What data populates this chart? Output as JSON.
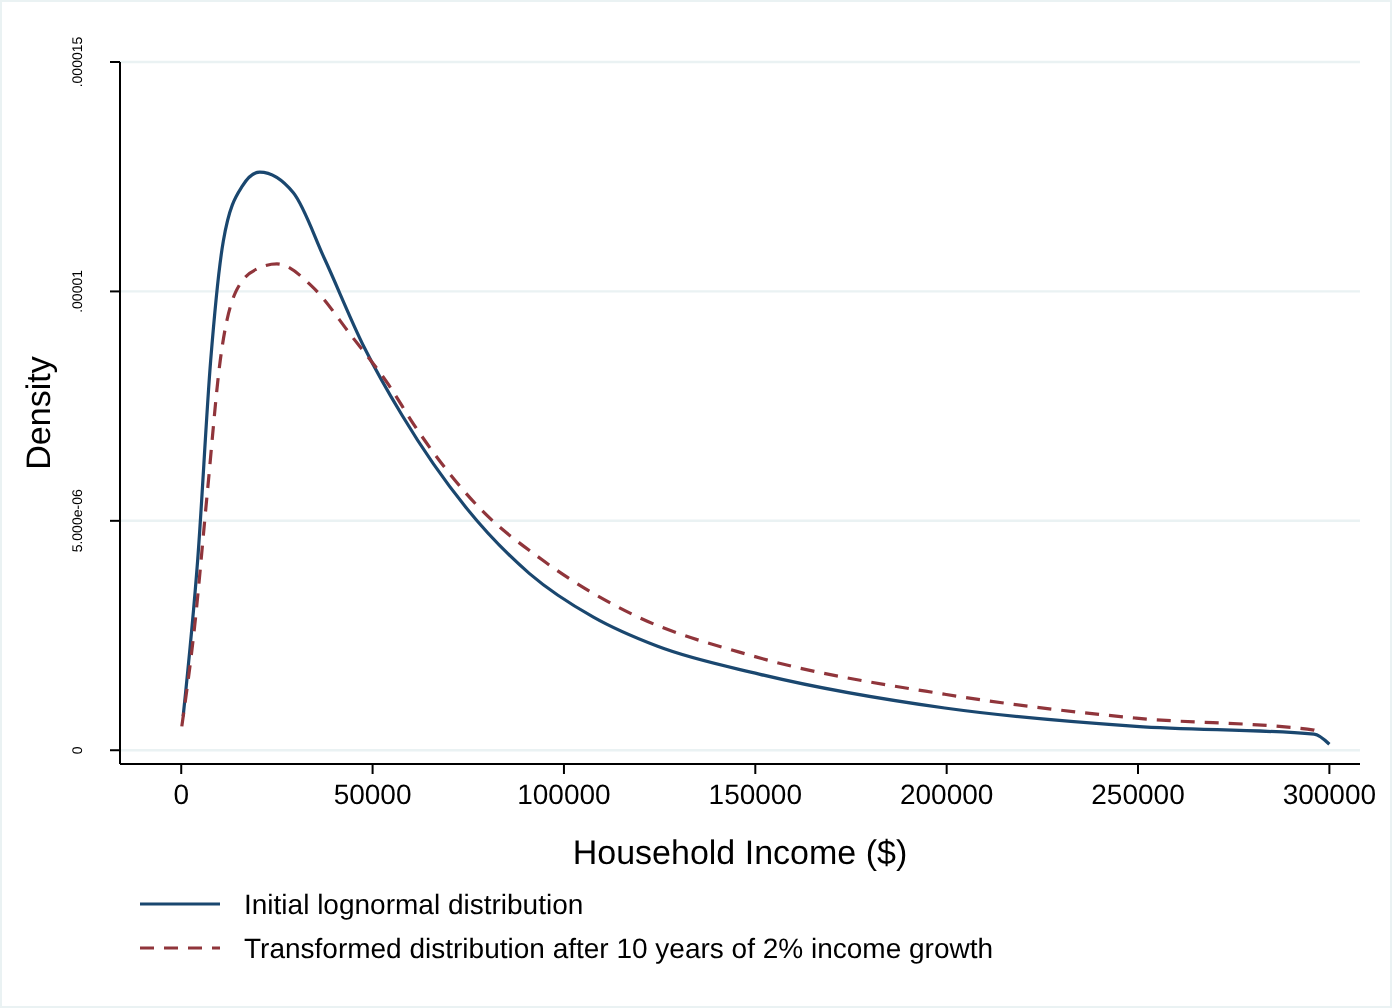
{
  "chart_data": {
    "type": "line",
    "xlabel": "Household Income ($)",
    "ylabel": "Density",
    "xlim": [
      -16000,
      308000
    ],
    "xticks": [
      0,
      50000,
      100000,
      150000,
      200000,
      250000,
      300000
    ],
    "ylim": [
      -3e-07,
      1.5e-05
    ],
    "yticks": [
      0,
      {
        "value": 5e-06,
        "label": "5.000e-06"
      },
      {
        "value": 1e-05,
        "label": ".00001"
      },
      {
        "value": 1.5e-05,
        "label": ".000015"
      }
    ],
    "grid": "y",
    "legend": "bottom",
    "series": [
      {
        "name": "Initial lognormal distribution",
        "color": "#1a476f",
        "line_style": "solid",
        "x": [
          500,
          4300,
          7700,
          11000,
          16000,
          20500,
          29300,
          37500,
          47700,
          57700,
          74300,
          91000,
          107700,
          124300,
          151000,
          199500,
          249500,
          296000,
          300000
        ],
        "values": [
          7.4e-07,
          4.15e-06,
          8.5e-06,
          1.11e-05,
          1.23e-05,
          1.26e-05,
          1.215e-05,
          1.07e-05,
          8.8e-06,
          7.3e-06,
          5.3e-06,
          3.85e-06,
          2.9e-06,
          2.27e-06,
          1.66e-06,
          9.2e-07,
          5.2e-07,
          3.5e-07,
          1.3e-07
        ]
      },
      {
        "name": "Transformed distribution after 10 years of 2% income growth",
        "color": "#90353b",
        "line_style": "dashed",
        "x": [
          150,
          3500,
          6800,
          10200,
          14300,
          20000,
          25000,
          34300,
          44300,
          54300,
          61000,
          77700,
          94300,
          117700,
          149500,
          199500,
          249500,
          296000,
          297500
        ],
        "values": [
          5.2e-07,
          2.7e-06,
          5.6e-06,
          8.5e-06,
          1e-05,
          1.05e-05,
          1.06e-05,
          1.01e-05,
          9.05e-06,
          7.95e-06,
          7.07e-06,
          5.3e-06,
          4.15e-06,
          2.97e-06,
          2.05e-06,
          1.22e-06,
          7e-07,
          4.4e-07,
          3e-07
        ]
      }
    ]
  }
}
